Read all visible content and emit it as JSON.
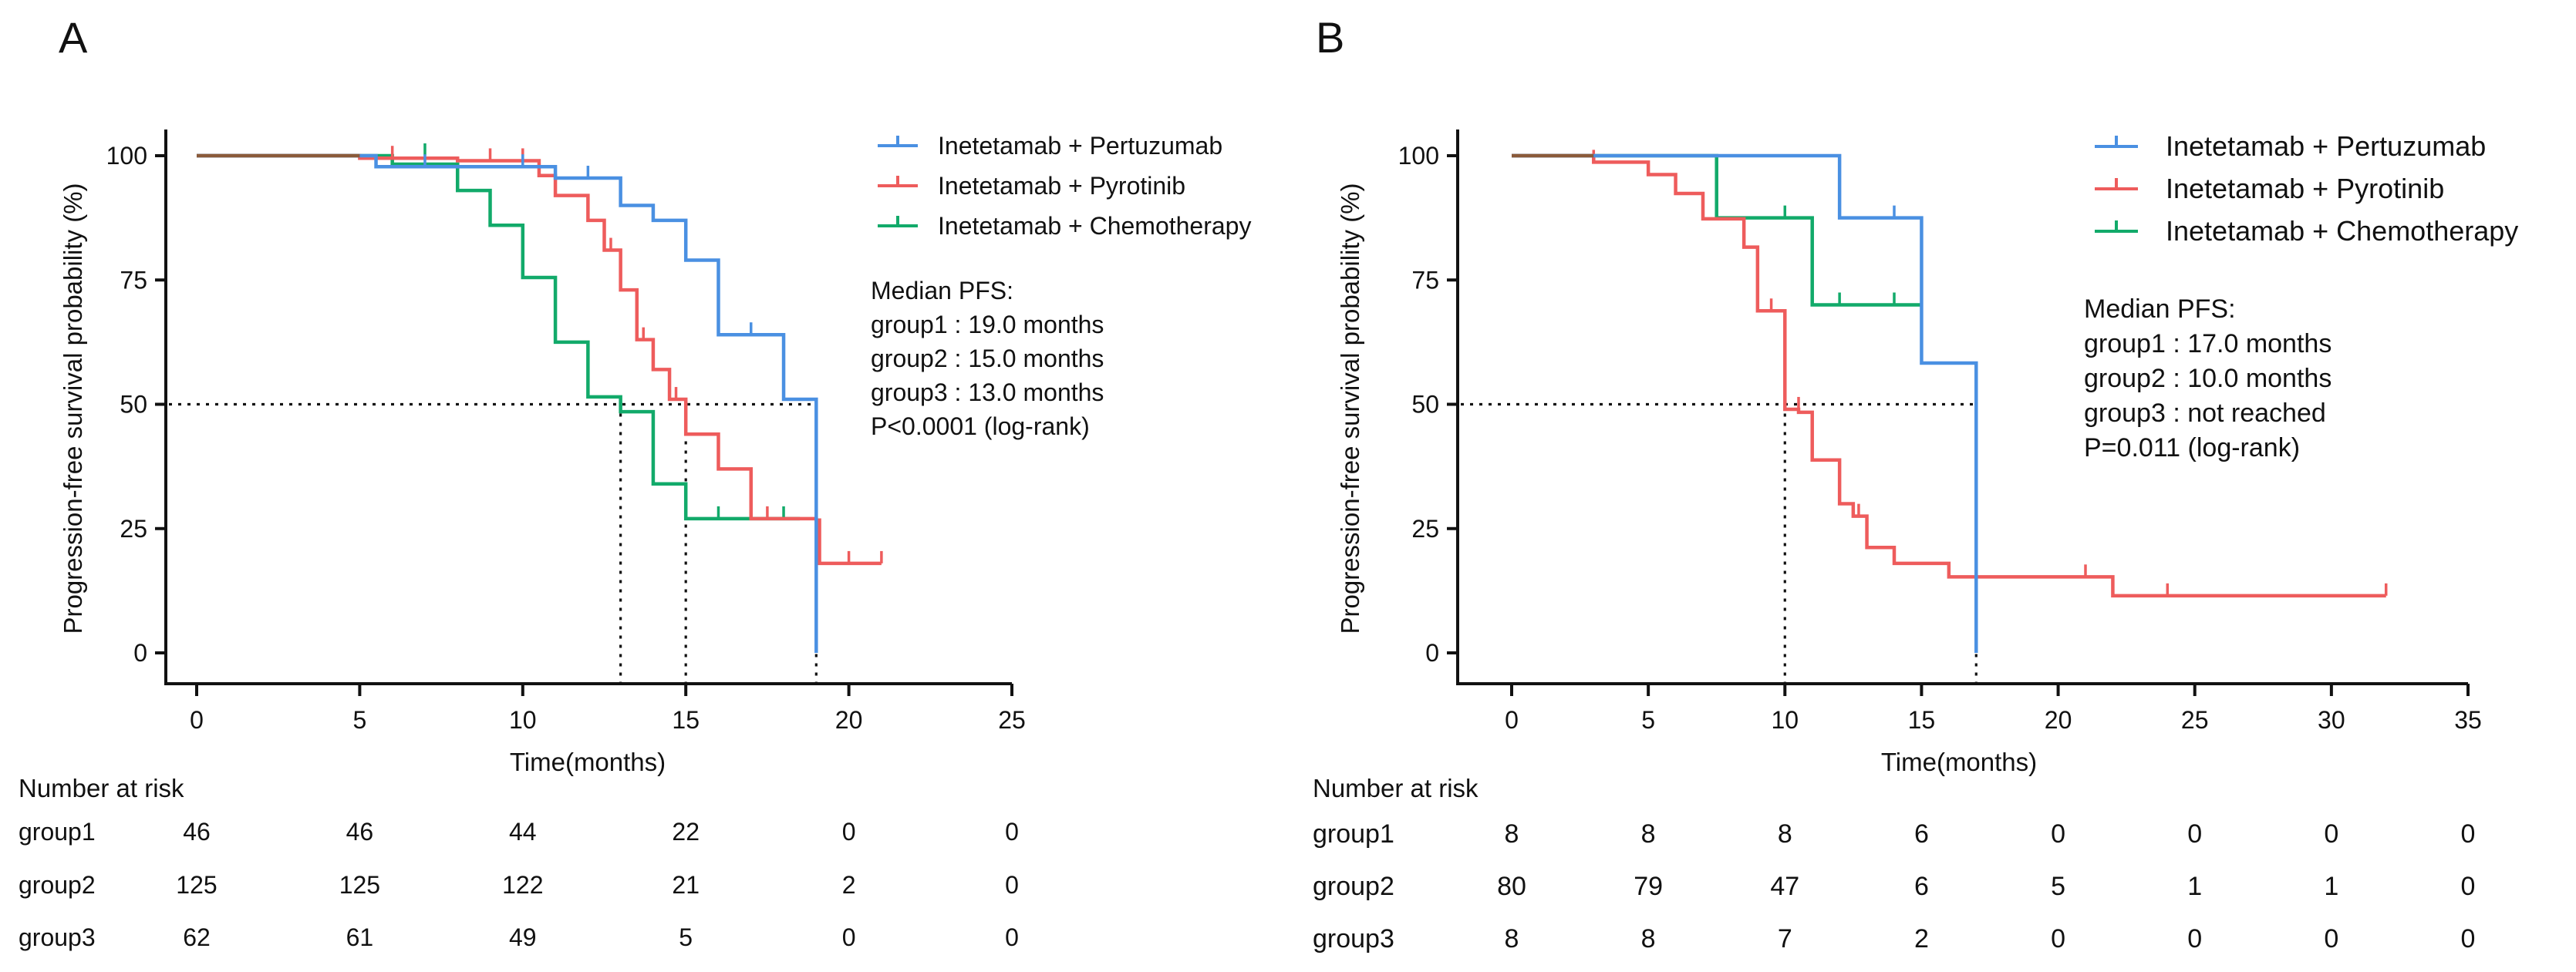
{
  "colors": {
    "group1": "#4a90e2",
    "group2": "#ee5c5c",
    "group3": "#12aa6a",
    "overlap": "#8a5a3a"
  },
  "chart_data": [
    {
      "type": "line",
      "panel": "A",
      "ylabel": "Progression-free survival probability (%)",
      "xlabel": "Time(months)",
      "xlim": [
        0,
        25
      ],
      "ylim": [
        0,
        100
      ],
      "xticks": [
        0,
        5,
        10,
        15,
        20,
        25
      ],
      "yticks": [
        0,
        25,
        50,
        75,
        100
      ],
      "reference_lines": {
        "y": 50,
        "x": [
          13,
          15,
          19
        ]
      },
      "legend": [
        "Inetetamab + Pertuzumab",
        "Inetetamab + Pyrotinib",
        "Inetetamab + Chemotherapy"
      ],
      "annotation": [
        "Median PFS:",
        "group1 : 19.0 months",
        "group2 : 15.0 months",
        "group3 : 13.0 months",
        "P<0.0001 (log-rank)"
      ],
      "series": [
        {
          "name": "Inetetamab + Pertuzumab",
          "steps": [
            [
              0,
              100
            ],
            [
              5.5,
              97.8
            ],
            [
              11,
              95.5
            ],
            [
              13,
              90
            ],
            [
              14,
              87
            ],
            [
              15,
              79
            ],
            [
              16,
              64
            ],
            [
              18,
              51
            ],
            [
              19,
              0
            ]
          ],
          "censors": [
            [
              7,
              97.8
            ],
            [
              10,
              97.8
            ],
            [
              12,
              95.5
            ],
            [
              17,
              64
            ]
          ]
        },
        {
          "name": "Inetetamab + Pyrotinib",
          "steps": [
            [
              0,
              100
            ],
            [
              5,
              99.5
            ],
            [
              8,
              99
            ],
            [
              10.5,
              96
            ],
            [
              11,
              92
            ],
            [
              12,
              87
            ],
            [
              12.5,
              81
            ],
            [
              13,
              73
            ],
            [
              13.5,
              63
            ],
            [
              14,
              57
            ],
            [
              14.5,
              51
            ],
            [
              15,
              44
            ],
            [
              16,
              37
            ],
            [
              17,
              27
            ],
            [
              19,
              26.7
            ],
            [
              19.1,
              18
            ]
          ],
          "censors": [
            [
              6,
              99.5
            ],
            [
              9,
              99
            ],
            [
              10,
              99
            ],
            [
              12.7,
              81
            ],
            [
              13.7,
              63
            ],
            [
              14.7,
              51
            ],
            [
              17.5,
              27
            ],
            [
              20,
              18
            ],
            [
              21,
              18
            ]
          ]
        },
        {
          "name": "Inetetamab + Chemotherapy",
          "steps": [
            [
              0,
              100
            ],
            [
              6,
              98.3
            ],
            [
              8,
              93
            ],
            [
              9,
              86
            ],
            [
              10,
              75.5
            ],
            [
              11,
              62.5
            ],
            [
              12,
              51.5
            ],
            [
              13,
              48.5
            ],
            [
              14,
              34
            ],
            [
              15,
              27
            ]
          ],
          "censors": [
            [
              7,
              100
            ],
            [
              16,
              27
            ],
            [
              18,
              27
            ]
          ],
          "end": 18.5
        }
      ],
      "risk_table": {
        "title": "Number at risk",
        "times": [
          0,
          5,
          10,
          15,
          20,
          25
        ],
        "rows": [
          {
            "label": "group1",
            "values": [
              "46",
              "46",
              "44",
              "22",
              "0",
              "0"
            ]
          },
          {
            "label": "group2",
            "values": [
              "125",
              "125",
              "122",
              "21",
              "2",
              "0"
            ]
          },
          {
            "label": "group3",
            "values": [
              "62",
              "61",
              "49",
              "5",
              "0",
              "0"
            ]
          }
        ]
      }
    },
    {
      "type": "line",
      "panel": "B",
      "ylabel": "Progression-free survival probability (%)",
      "xlabel": "Time(months)",
      "xlim": [
        0,
        35
      ],
      "ylim": [
        0,
        100
      ],
      "xticks": [
        0,
        5,
        10,
        15,
        20,
        25,
        30,
        35
      ],
      "yticks": [
        0,
        25,
        50,
        75,
        100
      ],
      "reference_lines": {
        "y": 50,
        "x": [
          10,
          17
        ]
      },
      "legend": [
        "Inetetamab + Pertuzumab",
        "Inetetamab + Pyrotinib",
        "Inetetamab + Chemotherapy"
      ],
      "annotation": [
        "Median PFS:",
        "group1 : 17.0 months",
        "group2 : 10.0 months",
        "group3 : not reached",
        "P=0.011 (log-rank)"
      ],
      "series": [
        {
          "name": "Inetetamab + Pertuzumab",
          "steps": [
            [
              0,
              100
            ],
            [
              12,
              87.5
            ],
            [
              15,
              58.3
            ],
            [
              17,
              0
            ]
          ],
          "censors": [
            [
              14,
              87.5
            ]
          ]
        },
        {
          "name": "Inetetamab + Pyrotinib",
          "steps": [
            [
              0,
              100
            ],
            [
              3,
              98.7
            ],
            [
              5,
              96.2
            ],
            [
              6,
              92.4
            ],
            [
              7,
              87.3
            ],
            [
              8.5,
              81.6
            ],
            [
              9,
              68.8
            ],
            [
              10,
              49
            ],
            [
              10.5,
              48.4
            ],
            [
              11,
              38.8
            ],
            [
              12,
              30
            ],
            [
              12.5,
              27.5
            ],
            [
              13,
              21.2
            ],
            [
              14,
              18
            ],
            [
              16,
              15.3
            ],
            [
              22,
              11.5
            ]
          ],
          "censors": [
            [
              3,
              98.7
            ],
            [
              5,
              96.2
            ],
            [
              9.5,
              68.8
            ],
            [
              10.5,
              49
            ],
            [
              12.7,
              27.5
            ],
            [
              21,
              15.3
            ],
            [
              24,
              11.5
            ],
            [
              32,
              11.5
            ]
          ]
        },
        {
          "name": "Inetetamab + Chemotherapy",
          "steps": [
            [
              0,
              100
            ],
            [
              7.5,
              87.5
            ],
            [
              11,
              70
            ]
          ],
          "censors": [
            [
              10,
              87.5
            ],
            [
              12,
              70
            ],
            [
              14,
              70
            ]
          ],
          "end": 15
        }
      ],
      "risk_table": {
        "title": "Number at risk",
        "times": [
          0,
          5,
          10,
          15,
          20,
          25,
          30,
          35
        ],
        "rows": [
          {
            "label": "group1",
            "values": [
              "8",
              "8",
              "8",
              "6",
              "0",
              "0",
              "0",
              "0"
            ]
          },
          {
            "label": "group2",
            "values": [
              "80",
              "79",
              "47",
              "6",
              "5",
              "1",
              "1",
              "0"
            ]
          },
          {
            "label": "group3",
            "values": [
              "8",
              "8",
              "7",
              "2",
              "0",
              "0",
              "0",
              "0"
            ]
          }
        ]
      }
    }
  ]
}
